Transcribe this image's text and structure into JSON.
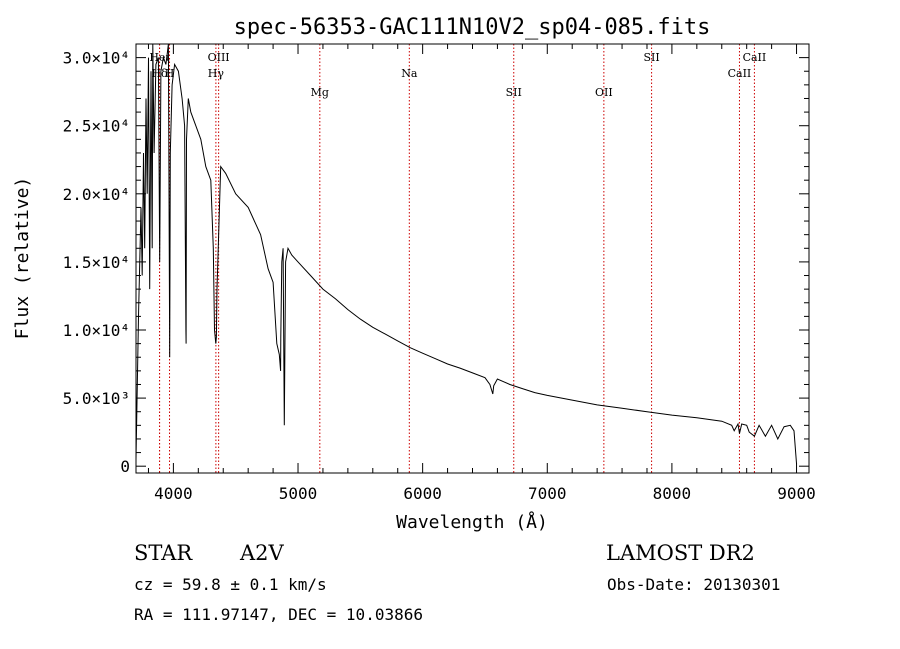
{
  "chart_data": {
    "type": "line",
    "title": "spec-56353-GAC111N10V2_sp04-085.fits",
    "xlabel": "Wavelength (Å)",
    "ylabel": "Flux (relative)",
    "xlim": [
      3700,
      9100
    ],
    "ylim": [
      -500,
      31000
    ],
    "x_ticks": [
      4000,
      5000,
      6000,
      7000,
      8000,
      9000
    ],
    "y_ticks": [
      {
        "value": 0,
        "label": "0"
      },
      {
        "value": 5000,
        "label": "5.0×10³"
      },
      {
        "value": 10000,
        "label": "1.0×10⁴"
      },
      {
        "value": 15000,
        "label": "1.5×10⁴"
      },
      {
        "value": 20000,
        "label": "2.0×10⁴"
      },
      {
        "value": 25000,
        "label": "2.5×10⁴"
      },
      {
        "value": 30000,
        "label": "3.0×10⁴"
      }
    ],
    "grid": false,
    "series": [
      {
        "x": [
          3700,
          3720,
          3740,
          3750,
          3760,
          3770,
          3780,
          3790,
          3800,
          3810,
          3820,
          3830,
          3835,
          3845,
          3860,
          3880,
          3890,
          3900,
          3920,
          3940,
          3960,
          3970,
          3975,
          3990,
          4010,
          4040,
          4070,
          4090,
          4100,
          4102,
          4105,
          4120,
          4140,
          4180,
          4220,
          4260,
          4300,
          4320,
          4330,
          4340,
          4345,
          4350,
          4380,
          4420,
          4500,
          4600,
          4700,
          4760,
          4800,
          4830,
          4850,
          4860,
          4862,
          4870,
          4880,
          4890,
          4900,
          4920,
          4950,
          5000,
          5100,
          5200,
          5300,
          5400,
          5500,
          5600,
          5700,
          5800,
          5900,
          6000,
          6100,
          6200,
          6300,
          6400,
          6500,
          6540,
          6560,
          6563,
          6570,
          6600,
          6700,
          6800,
          6900,
          7000,
          7200,
          7400,
          7600,
          7800,
          8000,
          8200,
          8400,
          8480,
          8500,
          8530,
          8542,
          8560,
          8600,
          8620,
          8662,
          8700,
          8750,
          8800,
          8850,
          8900,
          8950,
          8980,
          9000
        ],
        "y": [
          500,
          11000,
          19000,
          14000,
          23000,
          16000,
          27000,
          20000,
          30000,
          13000,
          29000,
          16000,
          31000,
          23000,
          29500,
          30000,
          15000,
          29000,
          30000,
          29500,
          31000,
          8000,
          23000,
          28000,
          29500,
          29000,
          27000,
          25000,
          10000,
          9000,
          24000,
          27000,
          26000,
          25000,
          24000,
          22000,
          21000,
          16000,
          10000,
          9000,
          9500,
          13000,
          22000,
          21500,
          20000,
          19000,
          17000,
          14500,
          13500,
          9000,
          8200,
          7000,
          9500,
          15000,
          16000,
          3000,
          15000,
          16000,
          15500,
          15000,
          14000,
          13000,
          12300,
          11500,
          10800,
          10200,
          9700,
          9200,
          8700,
          8300,
          7900,
          7500,
          7200,
          6850,
          6500,
          6000,
          5400,
          5300,
          5900,
          6400,
          6000,
          5700,
          5400,
          5200,
          4850,
          4500,
          4250,
          4000,
          3750,
          3550,
          3300,
          3000,
          2600,
          3100,
          2400,
          3100,
          3000,
          2500,
          2200,
          3000,
          2200,
          3000,
          2000,
          2900,
          3000,
          2600,
          200
        ]
      }
    ],
    "spectral_lines": [
      {
        "label": "Hδ",
        "x": 3889,
        "row": 2
      },
      {
        "label": "Heι",
        "x": 3889,
        "row": 1
      },
      {
        "label": "H",
        "x": 3969,
        "row": 2
      },
      {
        "label": "OIII",
        "x": 4363,
        "row": 1
      },
      {
        "label": "Hγ",
        "x": 4341,
        "row": 2
      },
      {
        "label": "Mg",
        "x": 5175,
        "row": 3
      },
      {
        "label": "Na",
        "x": 5893,
        "row": 2
      },
      {
        "label": "SII",
        "x": 6731,
        "row": 3
      },
      {
        "label": "OII",
        "x": 7454,
        "row": 3
      },
      {
        "label": "SII",
        "x": 7837,
        "row": 1
      },
      {
        "label": "CaII",
        "x": 8542,
        "row": 2
      },
      {
        "label": "CaII",
        "x": 8662,
        "row": 1
      }
    ],
    "line_color": "#000000",
    "marker_color": "#cc0000"
  },
  "info": {
    "object_class": "STAR",
    "subclass": "A2V",
    "survey": "LAMOST DR2",
    "cz": "cz = 59.8 ± 0.1 km/s",
    "obs_date": "Obs-Date: 20130301",
    "radec": "RA = 111.97147, DEC =  10.03866"
  }
}
